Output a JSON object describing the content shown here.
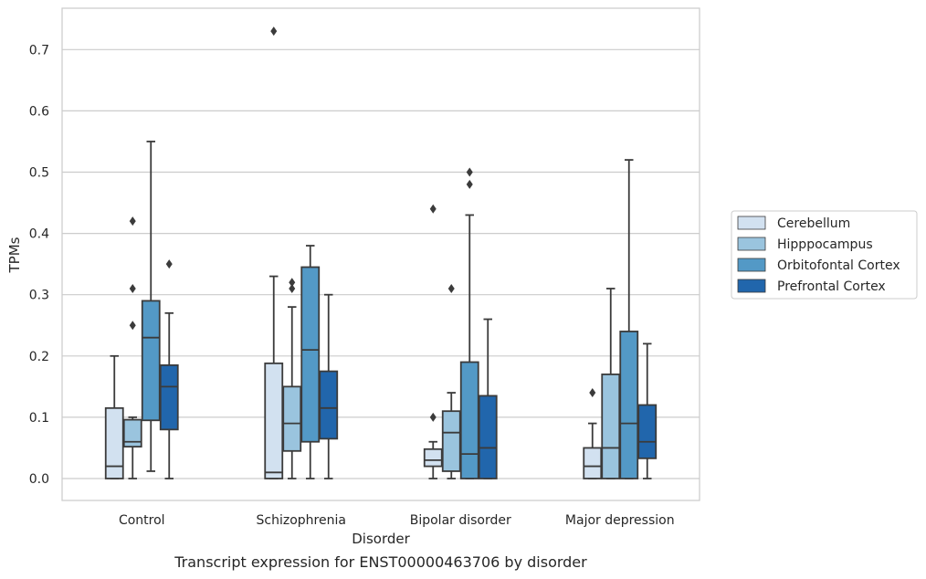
{
  "chart_data": {
    "type": "box",
    "caption": "Transcript expression for ENST00000463706 by disorder",
    "xlabel": "Disorder",
    "ylabel": "TPMs",
    "ylim": [
      -0.035,
      0.77
    ],
    "yticks": [
      0.0,
      0.1,
      0.2,
      0.3,
      0.4,
      0.5,
      0.6,
      0.7
    ],
    "ytick_labels": [
      "0.0",
      "0.1",
      "0.2",
      "0.3",
      "0.4",
      "0.5",
      "0.6",
      "0.7"
    ],
    "grid": "horizontal",
    "legend_position": "right",
    "categories": [
      "Control",
      "Schizophrenia",
      "Bipolar disorder",
      "Major depression"
    ],
    "series": [
      {
        "name": "Cerebellum",
        "color": "#d2e1f0",
        "boxes": [
          {
            "whislo": 0.0,
            "q1": 0.0,
            "med": 0.02,
            "q3": 0.115,
            "whishi": 0.2,
            "fliers": []
          },
          {
            "whislo": 0.0,
            "q1": 0.0,
            "med": 0.01,
            "q3": 0.188,
            "whishi": 0.33,
            "fliers": [
              0.73
            ]
          },
          {
            "whislo": 0.0,
            "q1": 0.02,
            "med": 0.03,
            "q3": 0.048,
            "whishi": 0.06,
            "fliers": [
              0.1,
              0.44
            ]
          },
          {
            "whislo": 0.0,
            "q1": 0.0,
            "med": 0.02,
            "q3": 0.05,
            "whishi": 0.09,
            "fliers": [
              0.14
            ]
          }
        ]
      },
      {
        "name": "Hipppocampus",
        "color": "#9ac4de",
        "boxes": [
          {
            "whislo": 0.0,
            "q1": 0.052,
            "med": 0.06,
            "q3": 0.096,
            "whishi": 0.1,
            "fliers": [
              0.25,
              0.31,
              0.42
            ]
          },
          {
            "whislo": 0.0,
            "q1": 0.045,
            "med": 0.09,
            "q3": 0.15,
            "whishi": 0.28,
            "fliers": [
              0.31,
              0.32
            ]
          },
          {
            "whislo": 0.0,
            "q1": 0.012,
            "med": 0.075,
            "q3": 0.11,
            "whishi": 0.14,
            "fliers": [
              0.31
            ]
          },
          {
            "whislo": 0.0,
            "q1": 0.0,
            "med": 0.05,
            "q3": 0.17,
            "whishi": 0.31,
            "fliers": []
          }
        ]
      },
      {
        "name": "Orbitofontal Cortex",
        "color": "#5399c6",
        "boxes": [
          {
            "whislo": 0.012,
            "q1": 0.095,
            "med": 0.23,
            "q3": 0.29,
            "whishi": 0.55,
            "fliers": []
          },
          {
            "whislo": 0.0,
            "q1": 0.06,
            "med": 0.21,
            "q3": 0.345,
            "whishi": 0.38,
            "fliers": []
          },
          {
            "whislo": 0.0,
            "q1": 0.0,
            "med": 0.04,
            "q3": 0.19,
            "whishi": 0.43,
            "fliers": [
              0.48,
              0.5
            ]
          },
          {
            "whislo": 0.0,
            "q1": 0.0,
            "med": 0.09,
            "q3": 0.24,
            "whishi": 0.52,
            "fliers": []
          }
        ]
      },
      {
        "name": "Prefrontal Cortex",
        "color": "#2166ac",
        "boxes": [
          {
            "whislo": 0.0,
            "q1": 0.08,
            "med": 0.15,
            "q3": 0.185,
            "whishi": 0.27,
            "fliers": [
              0.35
            ]
          },
          {
            "whislo": 0.0,
            "q1": 0.065,
            "med": 0.115,
            "q3": 0.175,
            "whishi": 0.3,
            "fliers": []
          },
          {
            "whislo": 0.0,
            "q1": 0.0,
            "med": 0.05,
            "q3": 0.135,
            "whishi": 0.26,
            "fliers": []
          },
          {
            "whislo": 0.0,
            "q1": 0.033,
            "med": 0.06,
            "q3": 0.12,
            "whishi": 0.22,
            "fliers": []
          }
        ]
      }
    ]
  }
}
